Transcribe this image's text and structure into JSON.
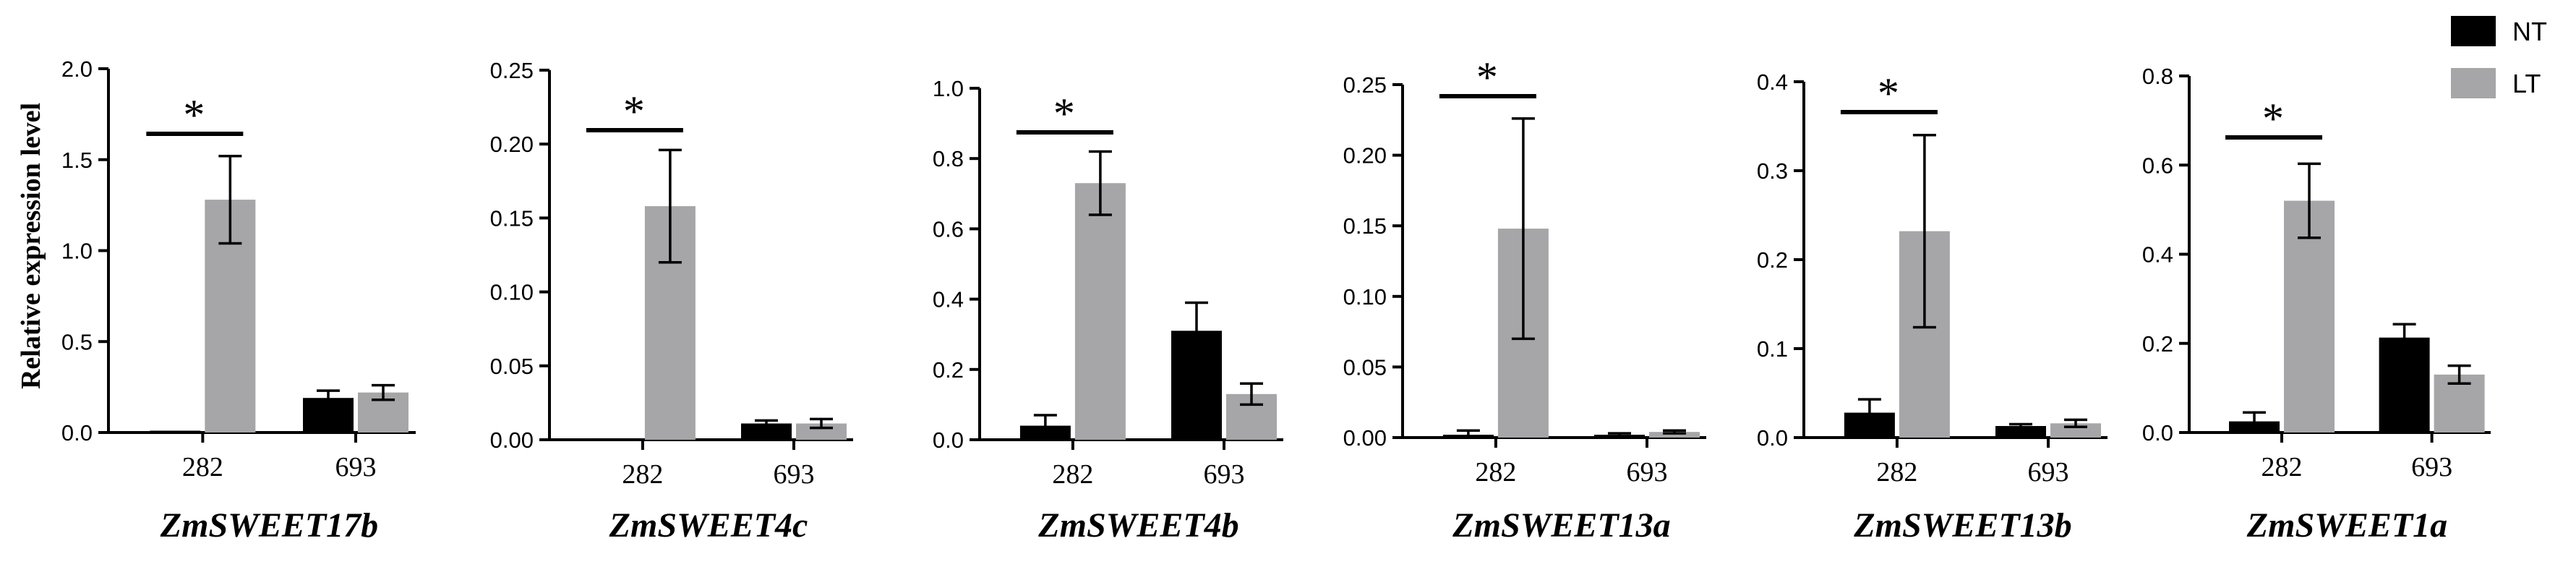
{
  "figure": {
    "ylabel": "Relative expression level",
    "legend": [
      {
        "name": "NT",
        "color": "#000000"
      },
      {
        "name": "LT",
        "color": "#a6a6a8"
      }
    ]
  },
  "chart_data": [
    {
      "type": "bar",
      "title": "ZmSWEET17b",
      "categories": [
        "282",
        "693"
      ],
      "ylim": [
        0,
        2.0
      ],
      "yticks": [
        "0.0",
        "0.5",
        "1.0",
        "1.5",
        "2.0"
      ],
      "series": [
        {
          "name": "NT",
          "values": [
            0.01,
            0.19
          ],
          "errors": [
            0.0,
            0.04
          ]
        },
        {
          "name": "LT",
          "values": [
            1.28,
            0.22
          ],
          "errors": [
            0.24,
            0.04
          ]
        }
      ],
      "significance": [
        {
          "category": "282",
          "label": "*"
        }
      ]
    },
    {
      "type": "bar",
      "title": "ZmSWEET4c",
      "categories": [
        "282",
        "693"
      ],
      "ylim": [
        0,
        0.25
      ],
      "yticks": [
        "0.00",
        "0.05",
        "0.10",
        "0.15",
        "0.20",
        "0.25"
      ],
      "series": [
        {
          "name": "NT",
          "values": [
            0.001,
            0.011
          ],
          "errors": [
            0.0,
            0.002
          ]
        },
        {
          "name": "LT",
          "values": [
            0.158,
            0.011
          ],
          "errors": [
            0.038,
            0.003
          ]
        }
      ],
      "significance": [
        {
          "category": "282",
          "label": "*"
        }
      ]
    },
    {
      "type": "bar",
      "title": "ZmSWEET4b",
      "categories": [
        "282",
        "693"
      ],
      "ylim": [
        0,
        1.0
      ],
      "yticks": [
        "0.0",
        "0.2",
        "0.4",
        "0.6",
        "0.8",
        "1.0"
      ],
      "series": [
        {
          "name": "NT",
          "values": [
            0.04,
            0.31
          ],
          "errors": [
            0.03,
            0.08
          ]
        },
        {
          "name": "LT",
          "values": [
            0.73,
            0.13
          ],
          "errors": [
            0.09,
            0.03
          ]
        }
      ],
      "significance": [
        {
          "category": "282",
          "label": "*"
        }
      ]
    },
    {
      "type": "bar",
      "title": "ZmSWEET13a",
      "categories": [
        "282",
        "693"
      ],
      "ylim": [
        0,
        0.25
      ],
      "yticks": [
        "0.00",
        "0.05",
        "0.10",
        "0.15",
        "0.20",
        "0.25"
      ],
      "series": [
        {
          "name": "NT",
          "values": [
            0.002,
            0.002
          ],
          "errors": [
            0.003,
            0.001
          ]
        },
        {
          "name": "LT",
          "values": [
            0.148,
            0.004
          ],
          "errors": [
            0.078,
            0.001
          ]
        }
      ],
      "significance": [
        {
          "category": "282",
          "label": "*"
        }
      ]
    },
    {
      "type": "bar",
      "title": "ZmSWEET13b",
      "categories": [
        "282",
        "693"
      ],
      "ylim": [
        0,
        0.4
      ],
      "yticks": [
        "0.0",
        "0.1",
        "0.2",
        "0.3",
        "0.4"
      ],
      "series": [
        {
          "name": "NT",
          "values": [
            0.028,
            0.013
          ],
          "errors": [
            0.015,
            0.002
          ]
        },
        {
          "name": "LT",
          "values": [
            0.232,
            0.016
          ],
          "errors": [
            0.108,
            0.004
          ]
        }
      ],
      "significance": [
        {
          "category": "282",
          "label": "*"
        }
      ]
    },
    {
      "type": "bar",
      "title": "ZmSWEET1a",
      "categories": [
        "282",
        "693"
      ],
      "ylim": [
        0,
        0.8
      ],
      "yticks": [
        "0.0",
        "0.2",
        "0.4",
        "0.6",
        "0.8"
      ],
      "series": [
        {
          "name": "NT",
          "values": [
            0.025,
            0.213
          ],
          "errors": [
            0.02,
            0.03
          ]
        },
        {
          "name": "LT",
          "values": [
            0.52,
            0.13
          ],
          "errors": [
            0.083,
            0.02
          ]
        }
      ],
      "significance": [
        {
          "category": "282",
          "label": "*"
        }
      ]
    }
  ]
}
